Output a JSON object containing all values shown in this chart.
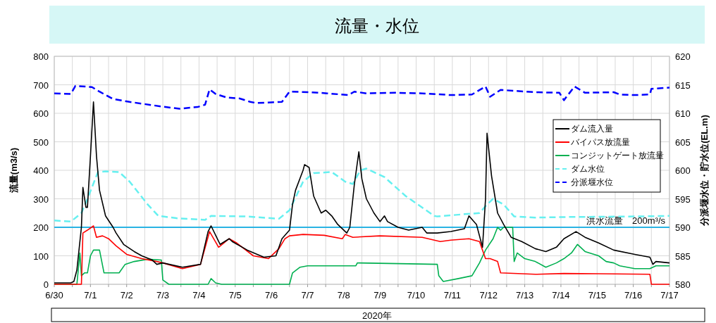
{
  "chart_data": {
    "type": "line",
    "title": "流量・水位",
    "xlabel": "2020年",
    "ylabel": "流量(m3/s)",
    "y2label": "分派堰水位・貯水位(EL.m)",
    "xlim": [
      "2020-06-30",
      "2020-07-17"
    ],
    "xticks": [
      {
        "value": "2020-06-30",
        "label": "6/30"
      },
      {
        "value": "2020-06-30T12:00",
        "label": null
      },
      {
        "value": "2020-07-01",
        "label": "7/1"
      },
      {
        "value": "2020-07-01T12:00",
        "label": null
      },
      {
        "value": "2020-07-02",
        "label": "7/2"
      },
      {
        "value": "2020-07-02T12:00",
        "label": null
      },
      {
        "value": "2020-07-03",
        "label": "7/3"
      },
      {
        "value": "2020-07-03T12:00",
        "label": null
      },
      {
        "value": "2020-07-04",
        "label": "7/4"
      },
      {
        "value": "2020-07-04T12:00",
        "label": null
      },
      {
        "value": "2020-07-05",
        "label": "7/5"
      },
      {
        "value": "2020-07-05T12:00",
        "label": null
      },
      {
        "value": "2020-07-06",
        "label": "7/6"
      },
      {
        "value": "2020-07-06T12:00",
        "label": null
      },
      {
        "value": "2020-07-07",
        "label": "7/7"
      },
      {
        "value": "2020-07-07T12:00",
        "label": null
      },
      {
        "value": "2020-07-08",
        "label": "7/8"
      },
      {
        "value": "2020-07-08T12:00",
        "label": null
      },
      {
        "value": "2020-07-09",
        "label": "7/9"
      },
      {
        "value": "2020-07-09T12:00",
        "label": null
      },
      {
        "value": "2020-07-10",
        "label": "7/10"
      },
      {
        "value": "2020-07-10T12:00",
        "label": null
      },
      {
        "value": "2020-07-11",
        "label": "7/11"
      },
      {
        "value": "2020-07-11T12:00",
        "label": null
      },
      {
        "value": "2020-07-12",
        "label": "7/12"
      },
      {
        "value": "2020-07-12T12:00",
        "label": null
      },
      {
        "value": "2020-07-13",
        "label": "7/13"
      },
      {
        "value": "2020-07-13T12:00",
        "label": null
      },
      {
        "value": "2020-07-14",
        "label": "7/14"
      },
      {
        "value": "2020-07-14T12:00",
        "label": null
      },
      {
        "value": "2020-07-15",
        "label": "7/15"
      },
      {
        "value": "2020-07-15T12:00",
        "label": null
      },
      {
        "value": "2020-07-16",
        "label": "7/16"
      },
      {
        "value": "2020-07-16T12:00",
        "label": null
      },
      {
        "value": "2020-07-17",
        "label": "7/17"
      }
    ],
    "ylim": [
      0,
      800
    ],
    "yticks": [
      0,
      100,
      200,
      300,
      400,
      500,
      600,
      700,
      800
    ],
    "y2lim": [
      580,
      620
    ],
    "y2ticks": [
      580,
      585,
      590,
      595,
      600,
      605,
      610,
      615,
      620
    ],
    "grid": true,
    "legend": "top right",
    "ref_lines": [
      {
        "axis": "y",
        "value": 200,
        "label": "洪水流量　200m³/s",
        "color": "#29b3e3"
      }
    ],
    "series": [
      {
        "name": "ダム流入量",
        "color": "#000000",
        "line_style": "solid",
        "x": [
          "2020-06-30T00:00",
          "2020-06-30T11:00",
          "2020-06-30T13:00",
          "2020-06-30T15:00",
          "2020-06-30T18:00",
          "2020-06-30T19:00",
          "2020-06-30T21:00",
          "2020-06-30T22:00",
          "2020-07-01T00:00",
          "2020-07-01T02:00",
          "2020-07-01T04:00",
          "2020-07-01T06:00",
          "2020-07-01T10:00",
          "2020-07-01T15:00",
          "2020-07-01T17:00",
          "2020-07-01T22:00",
          "2020-07-02T05:00",
          "2020-07-02T10:00",
          "2020-07-02T17:00",
          "2020-07-02T20:00",
          "2020-07-03T00:00",
          "2020-07-03T13:00",
          "2020-07-04T01:00",
          "2020-07-04T06:00",
          "2020-07-04T08:00",
          "2020-07-04T14:00",
          "2020-07-04T20:00",
          "2020-07-04T22:00",
          "2020-07-05T08:00",
          "2020-07-05T19:00",
          "2020-07-06T03:00",
          "2020-07-06T07:00",
          "2020-07-06T12:00",
          "2020-07-06T14:00",
          "2020-07-06T16:00",
          "2020-07-06T21:00",
          "2020-07-06T22:00",
          "2020-07-07T01:00",
          "2020-07-07T04:00",
          "2020-07-07T09:00",
          "2020-07-07T12:00",
          "2020-07-07T16:00",
          "2020-07-07T20:00",
          "2020-07-08T02:00",
          "2020-07-08T04:00",
          "2020-07-08T07:00",
          "2020-07-08T10:00",
          "2020-07-08T12:00",
          "2020-07-08T15:00",
          "2020-07-08T20:00",
          "2020-07-09T00:00",
          "2020-07-09T03:00",
          "2020-07-09T05:00",
          "2020-07-09T12:00",
          "2020-07-09T19:00",
          "2020-07-10T04:00",
          "2020-07-10T07:00",
          "2020-07-10T14:00",
          "2020-07-10T23:00",
          "2020-07-11T08:00",
          "2020-07-11T11:00",
          "2020-07-11T16:00",
          "2020-07-11T20:00",
          "2020-07-11T22:00",
          "2020-07-11T23:00",
          "2020-07-12T02:00",
          "2020-07-12T06:00",
          "2020-07-12T10:00",
          "2020-07-12T15:00",
          "2020-07-12T22:00",
          "2020-07-13T07:00",
          "2020-07-13T14:00",
          "2020-07-13T21:00",
          "2020-07-14T02:00",
          "2020-07-14T10:00",
          "2020-07-14T16:00",
          "2020-07-15T01:00",
          "2020-07-15T11:00",
          "2020-07-16T01:00",
          "2020-07-16T11:00",
          "2020-07-16T13:00",
          "2020-07-16T15:00",
          "2020-07-17T00:00"
        ],
        "values": [
          5,
          5,
          10,
          50,
          200,
          340,
          270,
          270,
          450,
          640,
          450,
          330,
          240,
          200,
          180,
          140,
          115,
          100,
          85,
          70,
          75,
          60,
          70,
          185,
          205,
          140,
          160,
          150,
          120,
          95,
          100,
          160,
          190,
          280,
          330,
          400,
          420,
          410,
          310,
          250,
          260,
          240,
          210,
          180,
          200,
          350,
          465,
          370,
          300,
          250,
          220,
          240,
          220,
          200,
          190,
          200,
          180,
          180,
          185,
          195,
          240,
          210,
          130,
          300,
          530,
          380,
          250,
          210,
          165,
          150,
          125,
          115,
          130,
          160,
          185,
          165,
          145,
          120,
          105,
          95,
          70,
          80,
          75
        ]
      },
      {
        "name": "バイパス放流量",
        "color": "#ff0000",
        "line_style": "solid",
        "x": [
          "2020-06-30T00:00",
          "2020-06-30T18:00",
          "2020-06-30T19:00",
          "2020-06-30T22:00",
          "2020-07-01T02:00",
          "2020-07-01T04:00",
          "2020-07-01T08:00",
          "2020-07-01T12:00",
          "2020-07-01T17:00",
          "2020-07-02T00:00",
          "2020-07-02T10:00",
          "2020-07-02T20:00",
          "2020-07-03T00:00",
          "2020-07-03T13:00",
          "2020-07-04T01:00",
          "2020-07-04T07:00",
          "2020-07-04T13:00",
          "2020-07-04T20:00",
          "2020-07-05T01:00",
          "2020-07-05T12:00",
          "2020-07-05T22:00",
          "2020-07-06T05:00",
          "2020-07-06T09:00",
          "2020-07-06T12:00",
          "2020-07-06T21:00",
          "2020-07-07T11:00",
          "2020-07-07T23:00",
          "2020-07-08T01:00",
          "2020-07-08T06:00",
          "2020-07-09T00:00",
          "2020-07-10T04:00",
          "2020-07-10T16:00",
          "2020-07-10T23:00",
          "2020-07-11T11:00",
          "2020-07-11T18:00",
          "2020-07-11T20:00",
          "2020-07-11T22:00",
          "2020-07-12T01:00",
          "2020-07-12T06:00",
          "2020-07-12T08:00",
          "2020-07-13T07:00",
          "2020-07-14T02:00",
          "2020-07-15T01:00",
          "2020-07-16T11:00",
          "2020-07-16T12:00",
          "2020-07-17T00:00"
        ],
        "values": [
          0,
          0,
          180,
          190,
          205,
          165,
          170,
          160,
          135,
          105,
          90,
          80,
          75,
          55,
          70,
          185,
          130,
          160,
          145,
          100,
          90,
          125,
          160,
          170,
          175,
          172,
          160,
          175,
          165,
          170,
          165,
          150,
          155,
          160,
          150,
          120,
          90,
          90,
          80,
          40,
          35,
          38,
          37,
          35,
          0,
          0
        ]
      },
      {
        "name": "コンジットゲート放流量",
        "color": "#00b050",
        "line_style": "solid",
        "x": [
          "2020-06-30T00:00",
          "2020-06-30T15:00",
          "2020-06-30T17:00",
          "2020-06-30T18:00",
          "2020-06-30T20:00",
          "2020-06-30T22:00",
          "2020-07-01T00:00",
          "2020-07-01T02:00",
          "2020-07-01T06:00",
          "2020-07-01T09:00",
          "2020-07-01T19:00",
          "2020-07-01T23:00",
          "2020-07-02T05:00",
          "2020-07-02T14:00",
          "2020-07-02T23:00",
          "2020-07-03T00:00",
          "2020-07-03T04:00",
          "2020-07-04T06:00",
          "2020-07-04T08:00",
          "2020-07-04T11:00",
          "2020-07-04T15:00",
          "2020-07-06T12:00",
          "2020-07-06T14:00",
          "2020-07-06T19:00",
          "2020-07-07T00:00",
          "2020-07-08T08:00",
          "2020-07-08T09:00",
          "2020-07-09T19:00",
          "2020-07-10T14:00",
          "2020-07-10T15:00",
          "2020-07-10T18:00",
          "2020-07-11T04:00",
          "2020-07-11T13:00",
          "2020-07-11T18:00",
          "2020-07-11T22:00",
          "2020-07-12T03:00",
          "2020-07-12T06:00",
          "2020-07-12T08:00",
          "2020-07-12T10:00",
          "2020-07-12T16:00",
          "2020-07-12T17:00",
          "2020-07-12T19:00",
          "2020-07-13T00:00",
          "2020-07-13T07:00",
          "2020-07-13T14:00",
          "2020-07-13T21:00",
          "2020-07-14T02:00",
          "2020-07-14T07:00",
          "2020-07-14T11:00",
          "2020-07-14T16:00",
          "2020-07-15T01:00",
          "2020-07-15T06:00",
          "2020-07-15T11:00",
          "2020-07-15T15:00",
          "2020-07-16T01:00",
          "2020-07-16T11:00",
          "2020-07-16T15:00",
          "2020-07-17T00:00"
        ],
        "values": [
          0,
          0,
          110,
          30,
          40,
          40,
          100,
          120,
          120,
          40,
          40,
          70,
          80,
          88,
          85,
          15,
          0,
          0,
          20,
          5,
          0,
          0,
          40,
          60,
          65,
          65,
          75,
          72,
          70,
          30,
          10,
          20,
          30,
          75,
          120,
          160,
          200,
          190,
          200,
          200,
          80,
          110,
          90,
          80,
          60,
          75,
          90,
          110,
          140,
          115,
          100,
          80,
          75,
          65,
          55,
          55,
          65,
          65
        ]
      },
      {
        "name": "ダム水位",
        "color": "#66f0f0",
        "line_style": "dashed",
        "axis": "y2",
        "x": [
          "2020-06-30T00:00",
          "2020-06-30T11:00",
          "2020-06-30T18:00",
          "2020-06-30T22:00",
          "2020-07-01T05:00",
          "2020-07-01T10:00",
          "2020-07-01T19:00",
          "2020-07-02T02:00",
          "2020-07-02T14:00",
          "2020-07-02T21:00",
          "2020-07-03T09:00",
          "2020-07-04T04:00",
          "2020-07-04T08:00",
          "2020-07-05T08:00",
          "2020-07-06T05:00",
          "2020-07-06T12:00",
          "2020-07-06T21:00",
          "2020-07-07T04:00",
          "2020-07-07T16:00",
          "2020-07-08T01:00",
          "2020-07-08T06:00",
          "2020-07-08T11:00",
          "2020-07-08T15:00",
          "2020-07-09T03:00",
          "2020-07-09T17:00",
          "2020-07-10T12:00",
          "2020-07-10T14:00",
          "2020-07-11T08:00",
          "2020-07-11T18:00",
          "2020-07-11T23:00",
          "2020-07-12T03:00",
          "2020-07-12T10:00",
          "2020-07-12T17:00",
          "2020-07-13T07:00",
          "2020-07-14T02:00",
          "2020-07-16T01:00",
          "2020-07-17T00:00"
        ],
        "values": [
          591.2,
          591,
          592.5,
          595,
          599.7,
          599.8,
          599.7,
          598,
          594,
          592,
          591.6,
          591.3,
          592,
          591.9,
          591.5,
          593,
          598,
          599.5,
          599.7,
          598,
          597.6,
          600,
          600.3,
          598.8,
          595.5,
          592,
          591.9,
          592.3,
          592.5,
          594,
          595,
          594,
          591.9,
          591.7,
          591.8,
          591.9,
          592
        ]
      },
      {
        "name": "分派堰水位",
        "color": "#0000ff",
        "line_style": "dashed",
        "axis": "y2",
        "x": [
          "2020-06-30T00:00",
          "2020-06-30T11:00",
          "2020-06-30T14:00",
          "2020-07-01T01:00",
          "2020-07-01T06:00",
          "2020-07-01T15:00",
          "2020-07-02T02:00",
          "2020-07-02T23:00",
          "2020-07-03T11:00",
          "2020-07-03T23:00",
          "2020-07-04T04:00",
          "2020-07-04T07:00",
          "2020-07-04T11:00",
          "2020-07-04T18:00",
          "2020-07-05T03:00",
          "2020-07-05T10:00",
          "2020-07-05T14:00",
          "2020-07-06T07:00",
          "2020-07-06T12:00",
          "2020-07-07T02:00",
          "2020-07-07T13:00",
          "2020-07-08T03:00",
          "2020-07-08T07:00",
          "2020-07-08T15:00",
          "2020-07-09T10:00",
          "2020-07-10T04:00",
          "2020-07-10T23:00",
          "2020-07-11T13:00",
          "2020-07-11T22:00",
          "2020-07-12T01:00",
          "2020-07-12T08:00",
          "2020-07-13T07:00",
          "2020-07-13T23:00",
          "2020-07-14T02:00",
          "2020-07-14T09:00",
          "2020-07-14T16:00",
          "2020-07-15T11:00",
          "2020-07-15T15:00",
          "2020-07-16T01:00",
          "2020-07-16T11:00",
          "2020-07-16T12:00",
          "2020-07-17T00:00"
        ],
        "values": [
          613.5,
          613.4,
          614.8,
          614.6,
          613.8,
          612.5,
          612,
          611.2,
          610.8,
          611.1,
          611.5,
          614.2,
          613.4,
          612.8,
          612.6,
          612,
          611.8,
          612,
          613.8,
          613.7,
          613.5,
          613.2,
          613.8,
          613.5,
          613.6,
          613.5,
          613.2,
          613.3,
          614.7,
          612.9,
          614.1,
          613.7,
          613.6,
          612.3,
          614.7,
          613.6,
          613.7,
          613.3,
          613.2,
          613.3,
          614.3,
          614.5
        ]
      }
    ]
  }
}
